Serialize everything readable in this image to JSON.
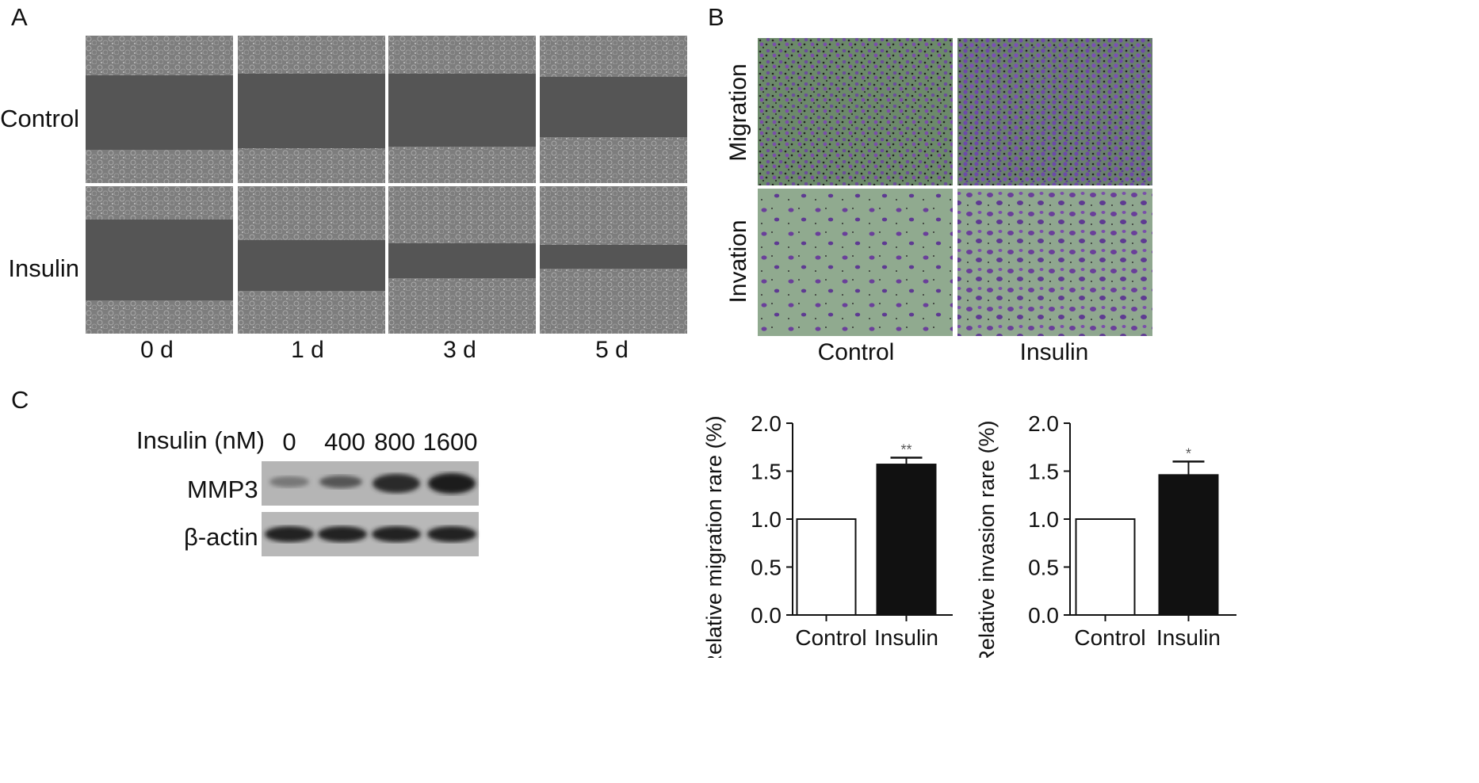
{
  "panelA": {
    "label": "A",
    "rows": [
      "Control",
      "Insulin"
    ],
    "columns": [
      "0 d",
      "1 d",
      "3 d",
      "5 d"
    ]
  },
  "panelB": {
    "label": "B",
    "rows": [
      "Migration",
      "Invation"
    ],
    "columns": [
      "Control",
      "Insulin"
    ]
  },
  "panelC": {
    "label": "C",
    "header_label": "Insulin (nM)",
    "doses": [
      "0",
      "400",
      "800",
      "1600"
    ],
    "bands": [
      "MMP3",
      "β-actin"
    ]
  },
  "chart_data": [
    {
      "type": "bar",
      "categories": [
        "Control",
        "Insulin"
      ],
      "values": [
        1.0,
        1.57
      ],
      "errors": [
        0,
        0.07
      ],
      "significance": [
        "",
        "**"
      ],
      "ylabel": "Relative migration rare (%)",
      "xlabel": "",
      "ylim": [
        0,
        2.0
      ],
      "yticks": [
        "0.0",
        "0.5",
        "1.0",
        "1.5",
        "2.0"
      ],
      "colors": [
        "#ffffff",
        "#111111"
      ]
    },
    {
      "type": "bar",
      "categories": [
        "Control",
        "Insulin"
      ],
      "values": [
        1.0,
        1.46
      ],
      "errors": [
        0,
        0.14
      ],
      "significance": [
        "",
        "*"
      ],
      "ylabel": "Relative invasion rare (%)",
      "xlabel": "",
      "ylim": [
        0,
        2.0
      ],
      "yticks": [
        "0.0",
        "0.5",
        "1.0",
        "1.5",
        "2.0"
      ],
      "colors": [
        "#ffffff",
        "#111111"
      ]
    }
  ]
}
